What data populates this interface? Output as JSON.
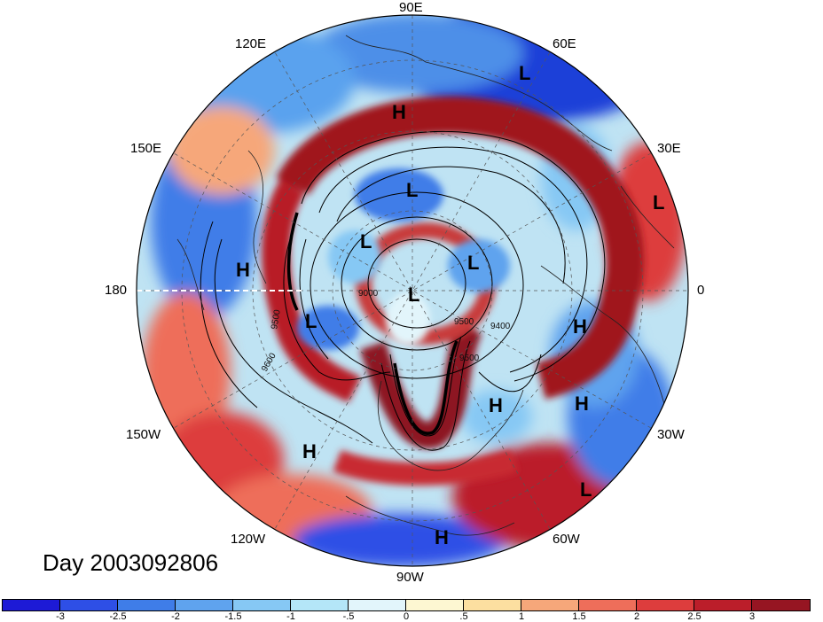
{
  "title": "Day 2003092806",
  "longitude_labels": [
    {
      "text": "90E"
    },
    {
      "text": "60E"
    },
    {
      "text": "30E"
    },
    {
      "text": "0"
    },
    {
      "text": "30W"
    },
    {
      "text": "60W"
    },
    {
      "text": "90W"
    },
    {
      "text": "120W"
    },
    {
      "text": "150W"
    },
    {
      "text": "180"
    },
    {
      "text": "150E"
    },
    {
      "text": "120E"
    }
  ],
  "pressure_centers": [
    {
      "type": "L",
      "name": "l-upper-right"
    },
    {
      "type": "H",
      "name": "h-top"
    },
    {
      "type": "L",
      "name": "l-right-edge"
    },
    {
      "type": "L",
      "name": "l-north-asia"
    },
    {
      "type": "L",
      "name": "l-siberia"
    },
    {
      "type": "L",
      "name": "l-arctic-east"
    },
    {
      "type": "L",
      "name": "l-pole"
    },
    {
      "type": "H",
      "name": "h-pacific"
    },
    {
      "type": "L",
      "name": "l-alaska"
    },
    {
      "type": "H",
      "name": "h-europe"
    },
    {
      "type": "H",
      "name": "h-atlantic-north"
    },
    {
      "type": "H",
      "name": "h-atlantic-east"
    },
    {
      "type": "H",
      "name": "h-east-pacific"
    },
    {
      "type": "L",
      "name": "l-south-atlantic"
    },
    {
      "type": "H",
      "name": "h-gulf"
    }
  ],
  "contour_labels": [
    "9000",
    "9500",
    "9500",
    "9400",
    "9500",
    "9600"
  ],
  "colorbar": {
    "ticks": [
      "-3",
      "-2.5",
      "-2",
      "-1.5",
      "-1",
      "-.5",
      "0",
      ".5",
      "1",
      "1.5",
      "2",
      "2.5",
      "3"
    ],
    "colors": [
      "#1d1ad6",
      "#2e4fe6",
      "#3f7de8",
      "#5fa3ee",
      "#86c8f4",
      "#b4e6f8",
      "#e2f5fb",
      "#fdf7d2",
      "#fcdfa0",
      "#f6a77a",
      "#ee6e5a",
      "#dd3d3d",
      "#bb1e2a",
      "#961522"
    ]
  }
}
